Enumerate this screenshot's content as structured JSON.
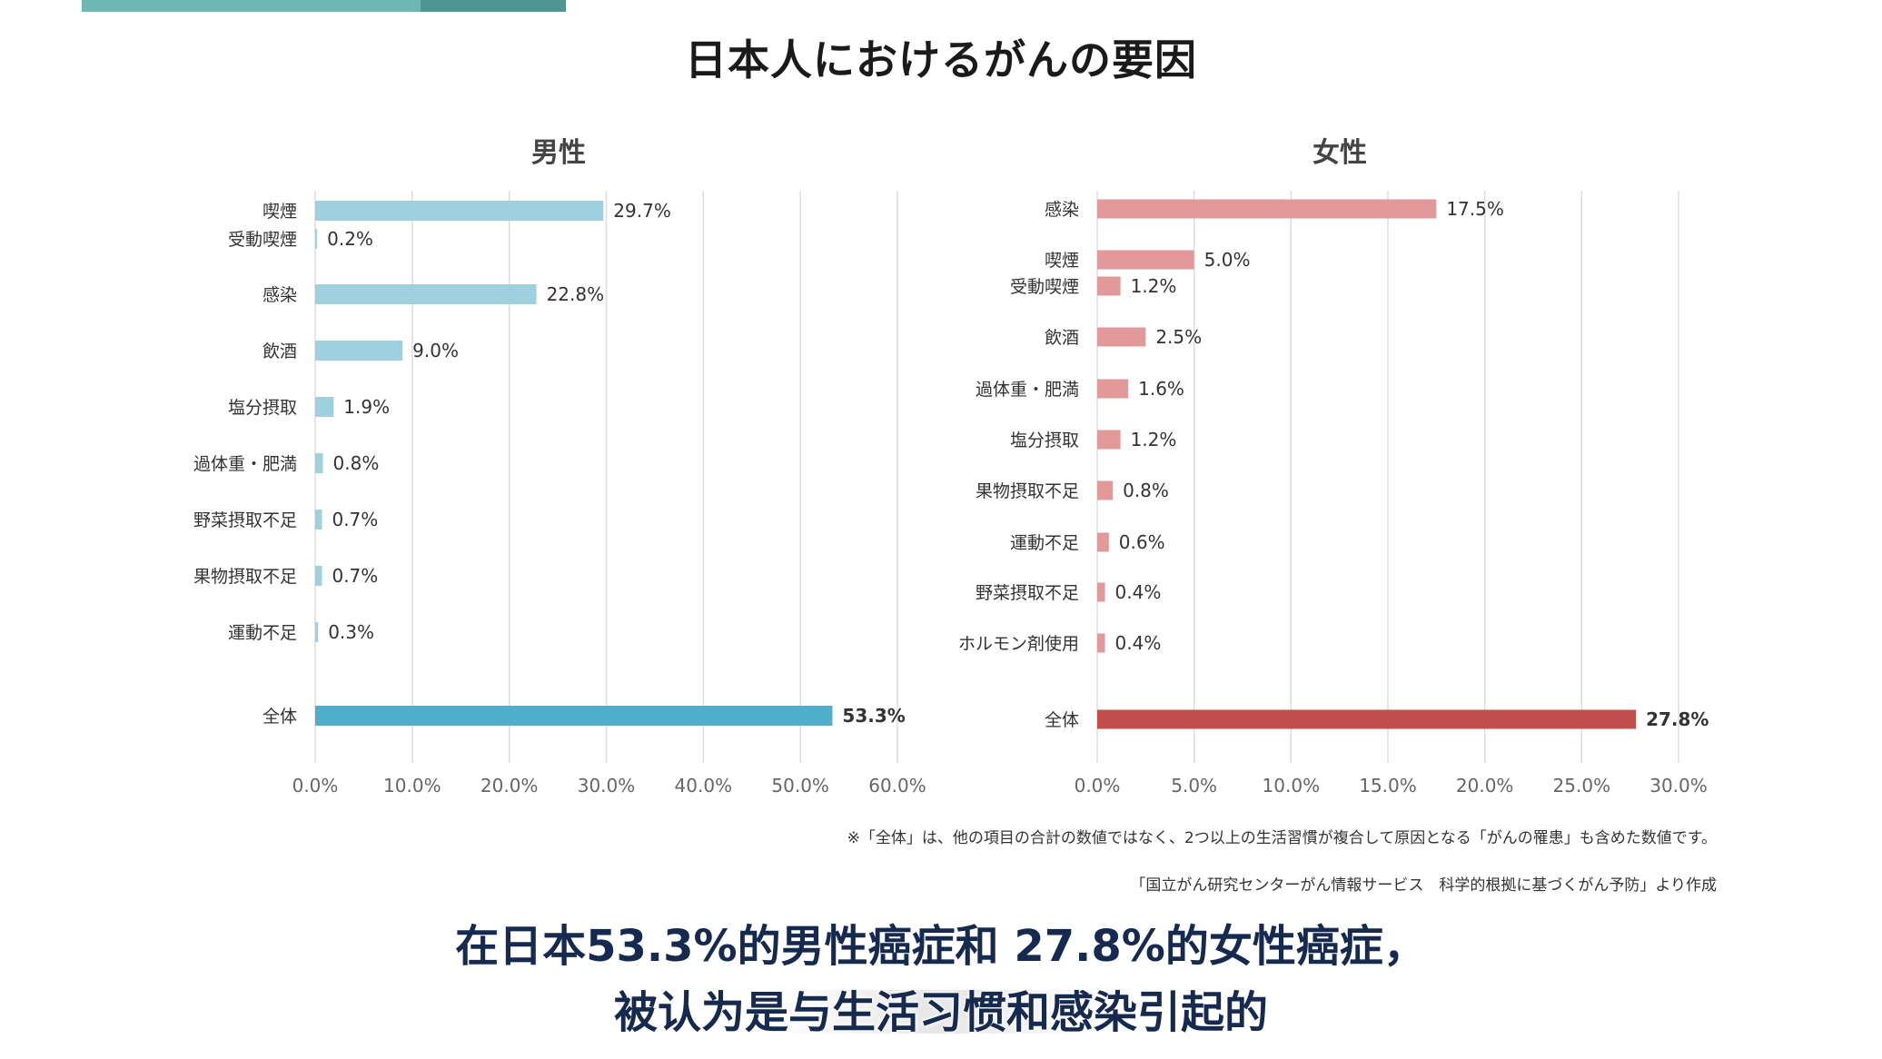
{
  "title": "日本人におけるがんの要因",
  "colors": {
    "accent": "#6eb7b5",
    "male_bar": "#9fd0e0",
    "male_total": "#4faec9",
    "female_bar": "#e19999",
    "female_total": "#c24d4d",
    "grid": "#dddddd",
    "subtitle": "#16294e"
  },
  "chart_data": [
    {
      "type": "bar",
      "orientation": "horizontal",
      "title": "男性",
      "categories": [
        "喫煙",
        "受動喫煙",
        "感染",
        "飲酒",
        "塩分摂取",
        "過体重・肥満",
        "野菜摂取不足",
        "果物摂取不足",
        "運動不足",
        "全体"
      ],
      "values": [
        29.7,
        0.2,
        22.8,
        9.0,
        1.9,
        0.8,
        0.7,
        0.7,
        0.3,
        53.3
      ],
      "value_labels": [
        "29.7%",
        "0.2%",
        "22.8%",
        "9.0%",
        "1.9%",
        "0.8%",
        "0.7%",
        "0.7%",
        "0.3%",
        "53.3%"
      ],
      "xlim": [
        0,
        60
      ],
      "xticks": [
        "0.0%",
        "10.0%",
        "20.0%",
        "30.0%",
        "40.0%",
        "50.0%",
        "60.0%"
      ],
      "grid": true
    },
    {
      "type": "bar",
      "orientation": "horizontal",
      "title": "女性",
      "categories": [
        "感染",
        "喫煙",
        "受動喫煙",
        "飲酒",
        "過体重・肥満",
        "塩分摂取",
        "果物摂取不足",
        "運動不足",
        "野菜摂取不足",
        "ホルモン剤使用",
        "全体"
      ],
      "values": [
        17.5,
        5.0,
        1.2,
        2.5,
        1.6,
        1.2,
        0.8,
        0.6,
        0.4,
        0.4,
        27.8
      ],
      "value_labels": [
        "17.5%",
        "5.0%",
        "1.2%",
        "2.5%",
        "1.6%",
        "1.2%",
        "0.8%",
        "0.6%",
        "0.4%",
        "0.4%",
        "27.8%"
      ],
      "xlim": [
        0,
        30
      ],
      "xticks": [
        "0.0%",
        "5.0%",
        "10.0%",
        "15.0%",
        "20.0%",
        "25.0%",
        "30.0%"
      ],
      "grid": true
    }
  ],
  "notes": {
    "note_1": "※「全体」は、他の項目の合計の数値ではなく、2つ以上の生活習慣が複合して原因となる「がんの罹患」も含めた数値です。",
    "note_2": "「国立がん研究センターがん情報サービス　科学的根拠に基づくがん予防」より作成"
  },
  "subtitles": {
    "line_1": "在日本53.3%的男性癌症和 27.8%的女性癌症，",
    "line_2": "被认为是与生活习惯和感染引起的"
  }
}
